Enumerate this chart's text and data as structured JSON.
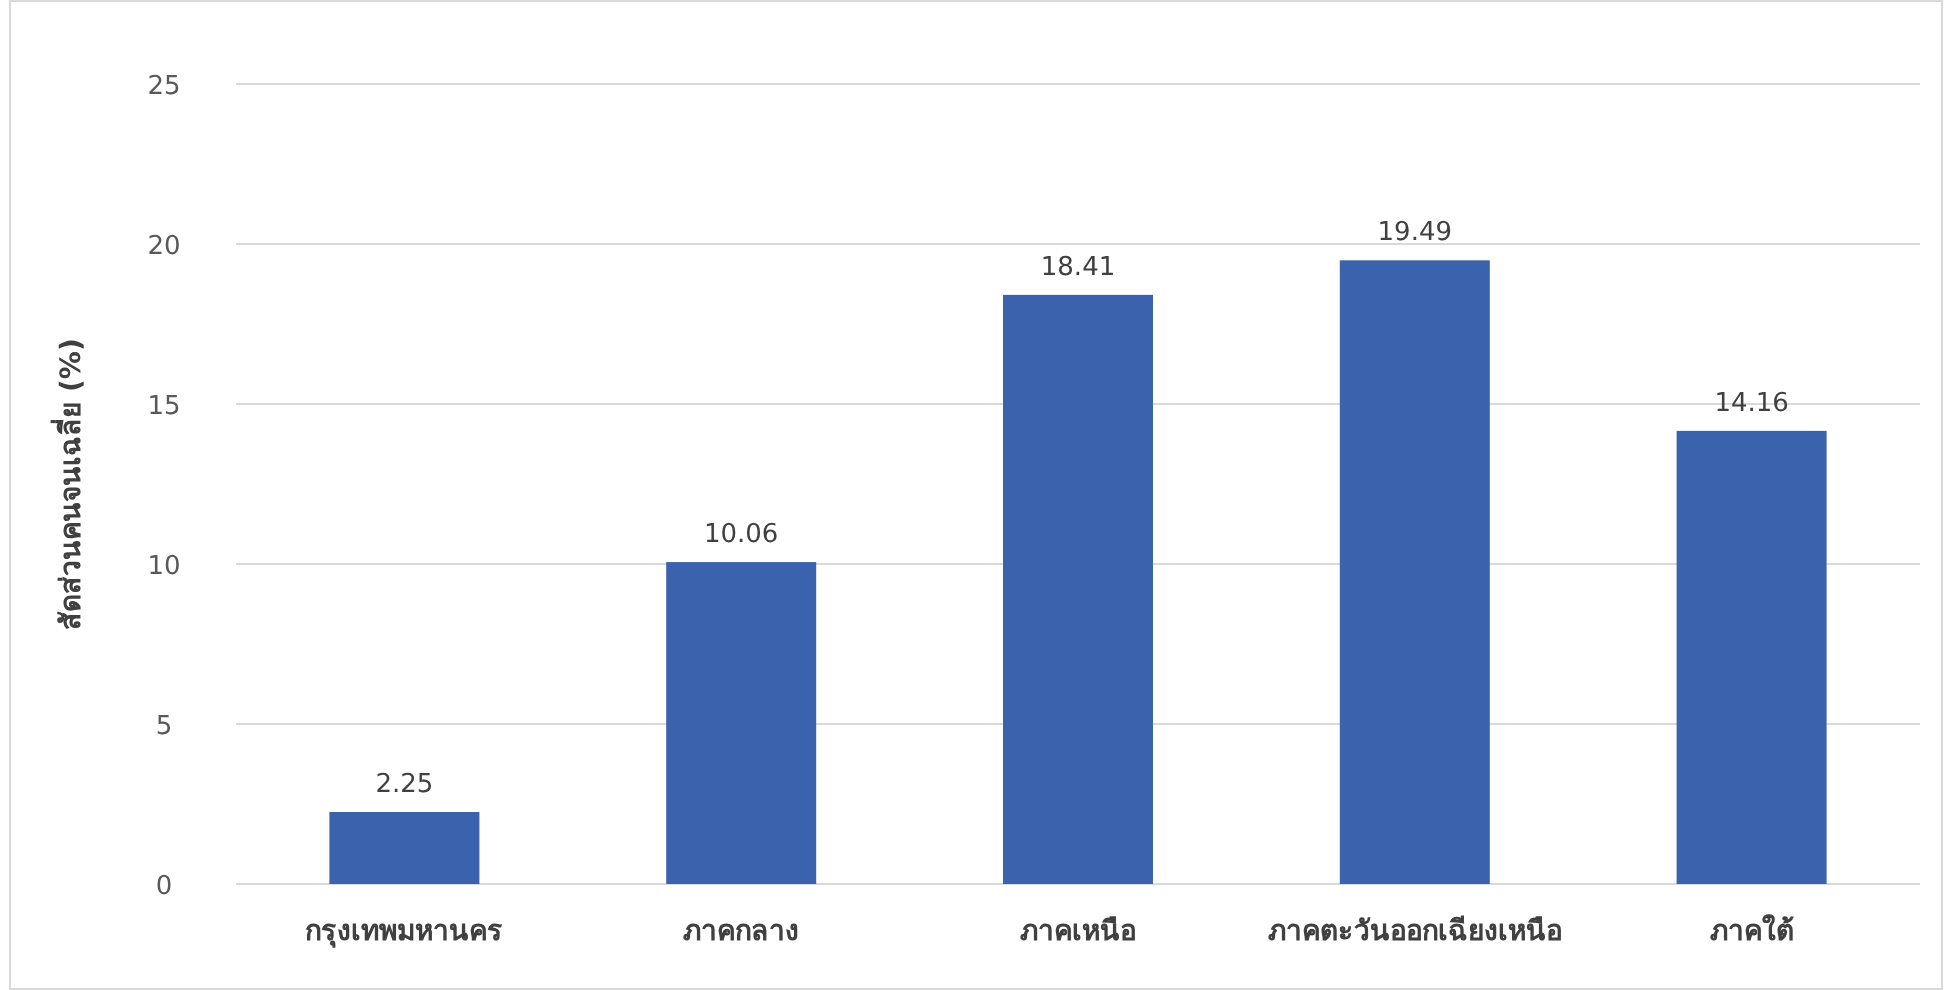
{
  "chart_data": {
    "type": "bar",
    "ylabel": "สัดส่วนคนจนเฉลี่ย (%)",
    "categories": [
      "กรุงเทพมหานคร",
      "ภาคกลาง",
      "ภาคเหนือ",
      "ภาคตะวันออกเฉียงเหนือ",
      "ภาคใต้"
    ],
    "values": [
      2.25,
      10.06,
      18.41,
      19.49,
      14.16
    ],
    "color": "#3b63ad",
    "ylim": [
      0,
      25
    ],
    "yticks": [
      0,
      5,
      10,
      15,
      20,
      25
    ],
    "grid": "y",
    "data_labels": true
  }
}
